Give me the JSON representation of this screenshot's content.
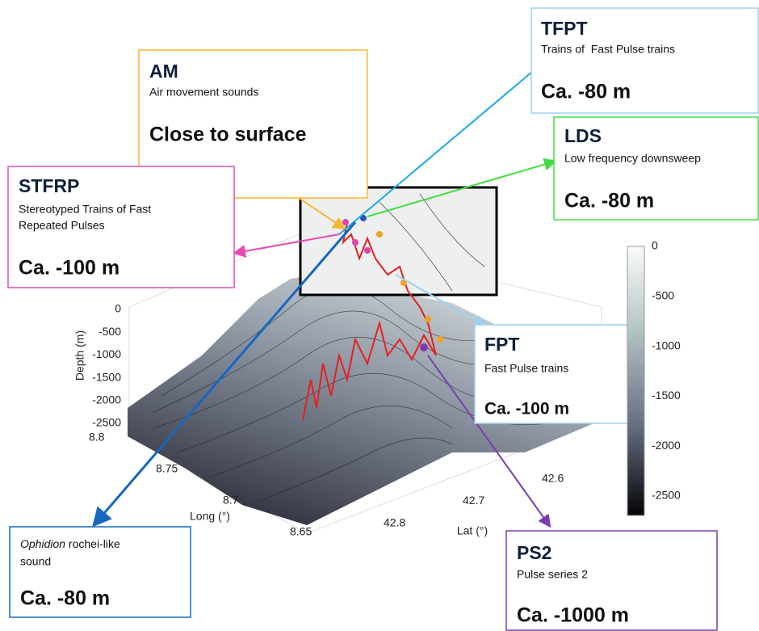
{
  "annotations": [
    {
      "title": "AM",
      "lines": [
        "Air movement sounds"
      ],
      "depth": "Close to surface"
    },
    {
      "title": "TFPT",
      "lines": [
        "Trains of  Fast Pulse trains"
      ],
      "depth": "Ca. -80 m"
    },
    {
      "title": "LDS",
      "lines": [
        "Low frequency downsweep"
      ],
      "depth": "Ca. -80 m"
    },
    {
      "title": "STFRP",
      "lines": [
        "Stereotyped Trains of Fast",
        "Repeated Pulses"
      ],
      "depth": "Ca. -100 m"
    },
    {
      "title": "FPT",
      "lines": [
        "Fast Pulse trains"
      ],
      "depth": "Ca. -100 m"
    },
    {
      "italic": "Ophidion",
      "lines": [
        " rochei-like",
        "sound"
      ],
      "depth": "Ca. -80 m"
    },
    {
      "title": "PS2",
      "lines": [
        "Pulse series 2"
      ],
      "depth": "Ca. -1000 m"
    }
  ],
  "axes": {
    "depth_label": "Depth (m)",
    "depth_ticks": [
      0,
      -500,
      -1000,
      -1500,
      -2000,
      -2500
    ],
    "long_label": "Long (°)",
    "long_ticks": [
      8.8,
      8.75,
      8.7,
      8.65
    ],
    "lat_label": "Lat (°)",
    "lat_ticks": [
      42.8,
      42.7,
      42.6
    ],
    "colorbar_ticks": [
      0,
      -500,
      -1000,
      -1500,
      -2000,
      -2500
    ]
  }
}
